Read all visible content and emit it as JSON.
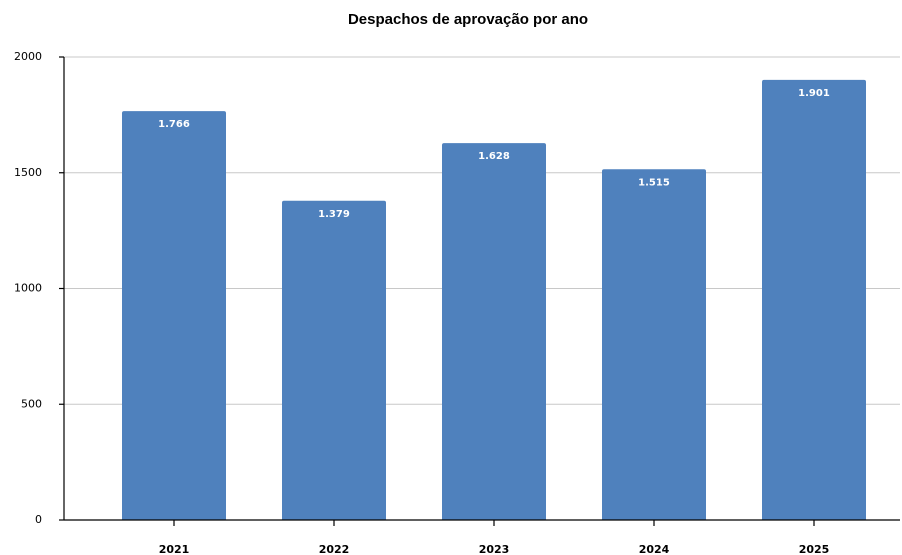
{
  "chart_data": {
    "type": "bar",
    "title": "Despachos de aprovação por ano",
    "categories": [
      "2021",
      "2022",
      "2023",
      "2024",
      "2025"
    ],
    "values": [
      1766,
      1379,
      1628,
      1515,
      1901
    ],
    "value_labels": [
      "1.766",
      "1.379",
      "1.628",
      "1.515",
      "1.901"
    ],
    "color": "#4f81bd",
    "ylim": [
      0,
      2000
    ],
    "yticks": [
      0,
      500,
      1000,
      1500,
      2000
    ],
    "grid": true
  }
}
